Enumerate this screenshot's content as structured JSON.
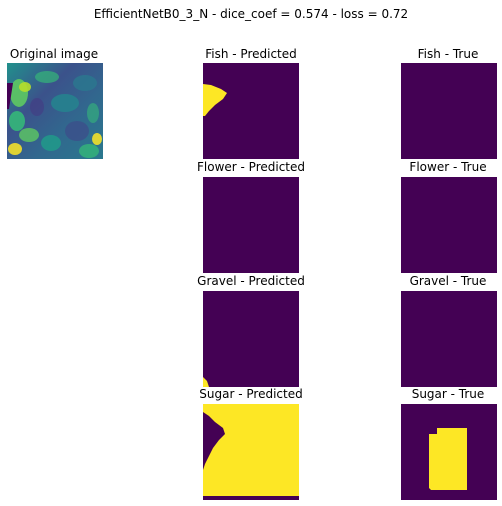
{
  "figure": {
    "title": "EfficientNetB0_3_N - dice_coef = 0.574 - loss = 0.72"
  },
  "original": {
    "title": "Original image"
  },
  "rows": [
    {
      "predicted_title": "Fish - Predicted",
      "true_title": "Fish - True"
    },
    {
      "predicted_title": "Flower - Predicted",
      "true_title": "Flower - True"
    },
    {
      "predicted_title": "Gravel - Predicted",
      "true_title": "Gravel - True"
    },
    {
      "predicted_title": "Sugar - Predicted",
      "true_title": "Sugar - True"
    }
  ],
  "colors": {
    "mask_background": "#440154",
    "mask_foreground": "#fde725",
    "image_dark": "#3b528b",
    "image_mid": "#21918c",
    "image_light": "#5ec962"
  }
}
